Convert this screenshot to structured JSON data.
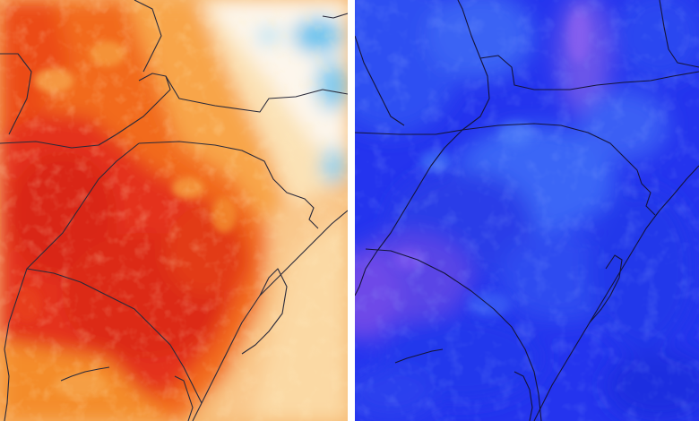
{
  "maps": [
    {
      "id": "temperature-anomaly-warm",
      "colors": {
        "ocean": "#f7c58b",
        "deep": "#d92512",
        "strong": "#ea3d14",
        "mid": "#f26a1d",
        "light": "#f8a54a",
        "pale": "#fbd9a4",
        "white": "#fbfbf8",
        "cool": "#8fd2ef",
        "coolDeep": "#4eb6e6"
      }
    },
    {
      "id": "temperature-anomaly-cold",
      "colors": {
        "base": "#2434ee",
        "dark": "#1a1fd8",
        "mid": "#2f4ff2",
        "light": "#3e6cf6",
        "purple": "#5b3fe6",
        "violet": "#7a52ee"
      }
    }
  ],
  "borders": {
    "color": "#2a2a3a"
  }
}
